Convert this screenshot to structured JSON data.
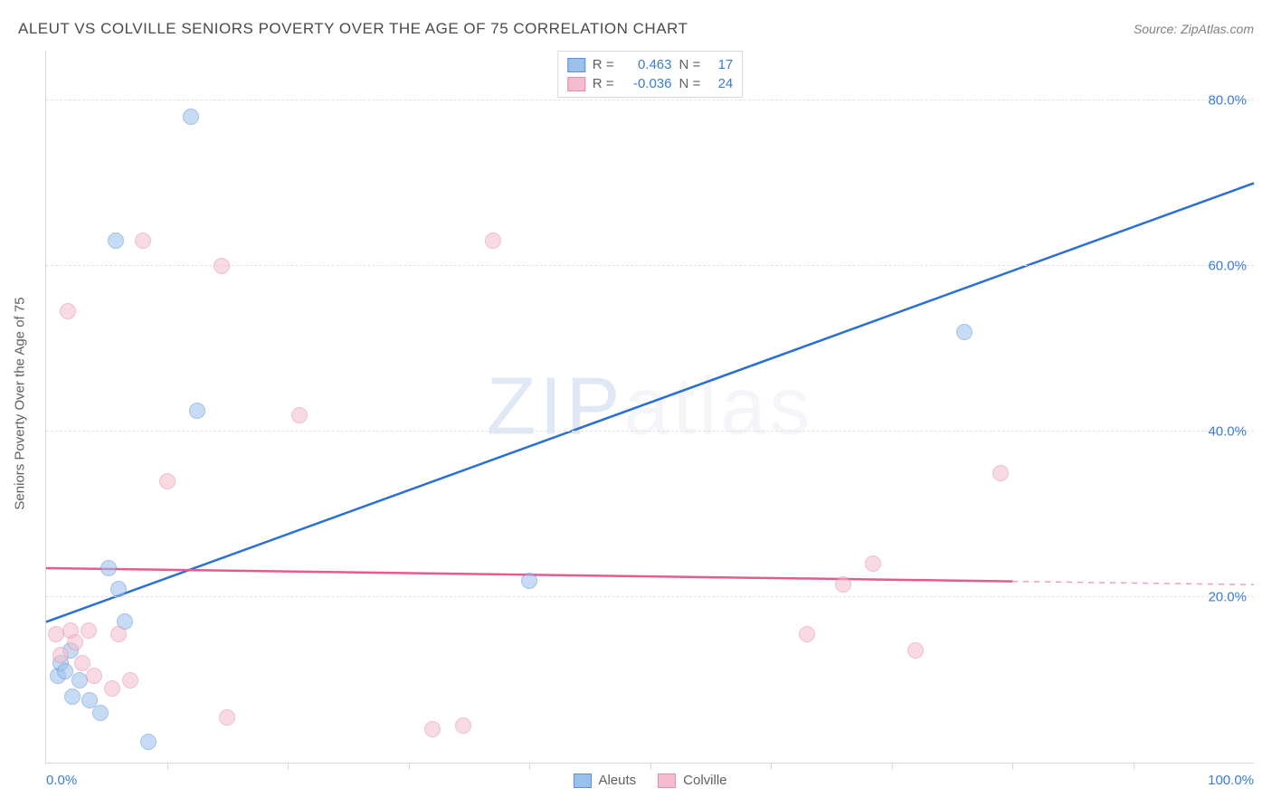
{
  "title": "ALEUT VS COLVILLE SENIORS POVERTY OVER THE AGE OF 75 CORRELATION CHART",
  "source": "Source: ZipAtlas.com",
  "watermark": "ZIPatlas",
  "y_axis_title": "Seniors Poverty Over the Age of 75",
  "chart": {
    "type": "scatter-with-regression",
    "x_min": 0,
    "x_max": 100,
    "y_min": 0,
    "y_max": 86,
    "x_min_label": "0.0%",
    "x_max_label": "100.0%",
    "y_grid": [
      20,
      40,
      60,
      80
    ],
    "y_tick_labels": [
      "20.0%",
      "40.0%",
      "60.0%",
      "80.0%"
    ],
    "x_ticks": [
      10,
      20,
      30,
      40,
      50,
      60,
      70,
      80,
      90
    ],
    "background_color": "#ffffff",
    "grid_color": "#e2e2e2",
    "axis_color": "#d8d8d8",
    "tick_label_color": "#3a7bd5",
    "title_color": "#4a4a4a",
    "title_fontsize": 17,
    "label_fontsize": 15,
    "marker_radius": 9,
    "marker_opacity": 0.55,
    "series": [
      {
        "name": "Aleuts",
        "fill": "#9bc0ec",
        "stroke": "#5b8fd6",
        "line_color": "#2a6fd6",
        "line_width": 2.5,
        "R_label": "R =",
        "R": "0.463",
        "N_label": "N =",
        "N": "17",
        "regression": {
          "x1": 0,
          "y1": 17,
          "x2": 100,
          "y2": 70,
          "dashed_after_x": null
        },
        "points": [
          {
            "x": 1.0,
            "y": 10.5
          },
          {
            "x": 1.2,
            "y": 12.0
          },
          {
            "x": 1.6,
            "y": 11.0
          },
          {
            "x": 2.0,
            "y": 13.5
          },
          {
            "x": 2.2,
            "y": 8.0
          },
          {
            "x": 2.8,
            "y": 10.0
          },
          {
            "x": 3.6,
            "y": 7.5
          },
          {
            "x": 4.5,
            "y": 6.0
          },
          {
            "x": 5.2,
            "y": 23.5
          },
          {
            "x": 6.0,
            "y": 21.0
          },
          {
            "x": 6.5,
            "y": 17.0
          },
          {
            "x": 5.8,
            "y": 63.0
          },
          {
            "x": 8.5,
            "y": 2.5
          },
          {
            "x": 12.0,
            "y": 78.0
          },
          {
            "x": 12.5,
            "y": 42.5
          },
          {
            "x": 40.0,
            "y": 22.0
          },
          {
            "x": 76.0,
            "y": 52.0
          }
        ]
      },
      {
        "name": "Colville",
        "fill": "#f4bccd",
        "stroke": "#e38ba8",
        "line_color": "#e75a8d",
        "line_width": 2.5,
        "R_label": "R =",
        "R": "-0.036",
        "N_label": "N =",
        "N": "24",
        "regression": {
          "x1": 0,
          "y1": 23.5,
          "x2": 100,
          "y2": 21.5,
          "dashed_after_x": 80
        },
        "points": [
          {
            "x": 0.8,
            "y": 15.5
          },
          {
            "x": 1.2,
            "y": 13.0
          },
          {
            "x": 1.8,
            "y": 54.5
          },
          {
            "x": 2.0,
            "y": 16.0
          },
          {
            "x": 2.4,
            "y": 14.5
          },
          {
            "x": 3.0,
            "y": 12.0
          },
          {
            "x": 3.5,
            "y": 16.0
          },
          {
            "x": 4.0,
            "y": 10.5
          },
          {
            "x": 5.5,
            "y": 9.0
          },
          {
            "x": 6.0,
            "y": 15.5
          },
          {
            "x": 7.0,
            "y": 10.0
          },
          {
            "x": 8.0,
            "y": 63.0
          },
          {
            "x": 10.0,
            "y": 34.0
          },
          {
            "x": 14.5,
            "y": 60.0
          },
          {
            "x": 15.0,
            "y": 5.5
          },
          {
            "x": 21.0,
            "y": 42.0
          },
          {
            "x": 32.0,
            "y": 4.0
          },
          {
            "x": 34.5,
            "y": 4.5
          },
          {
            "x": 37.0,
            "y": 63.0
          },
          {
            "x": 63.0,
            "y": 15.5
          },
          {
            "x": 66.0,
            "y": 21.5
          },
          {
            "x": 68.5,
            "y": 24.0
          },
          {
            "x": 72.0,
            "y": 13.5
          },
          {
            "x": 79.0,
            "y": 35.0
          }
        ]
      }
    ]
  }
}
